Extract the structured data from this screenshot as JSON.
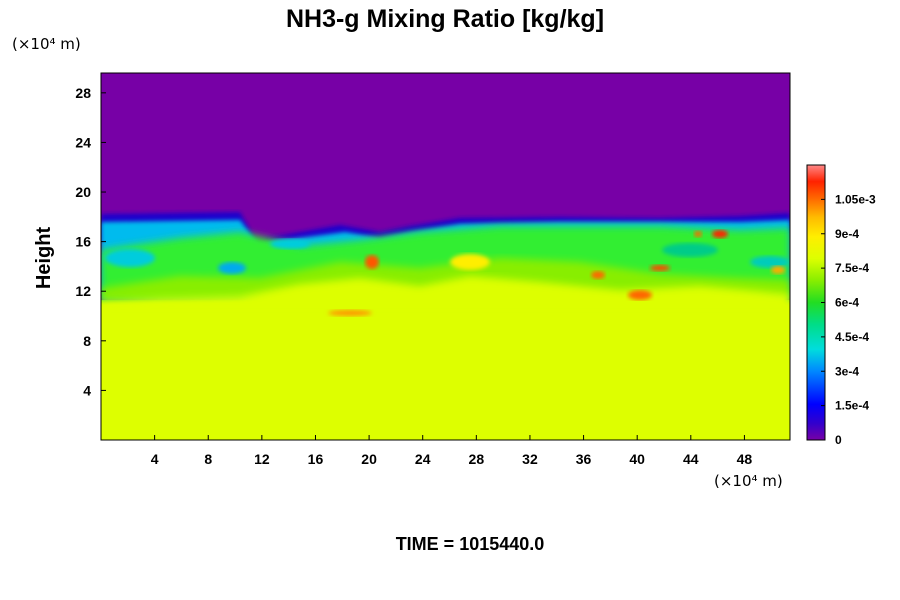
{
  "chart_data": {
    "type": "heatmap",
    "title": "NH3-g Mixing Ratio [kg/kg]",
    "ylabel": "Height",
    "x_unit": "(×10⁴ m)",
    "y_unit": "(×10⁴ m)",
    "x_ticks": [
      4,
      8,
      12,
      16,
      20,
      24,
      28,
      32,
      36,
      40,
      44,
      48
    ],
    "y_ticks": [
      4,
      8,
      12,
      16,
      20,
      24,
      28
    ],
    "xlim": [
      0,
      51.4
    ],
    "ylim": [
      0,
      29.6
    ],
    "colorbar": {
      "labels": [
        "0",
        "1.5e-4",
        "3e-4",
        "4.5e-4",
        "6e-4",
        "7.5e-4",
        "9e-4",
        "1.05e-3"
      ],
      "values": [
        0,
        0.00015,
        0.0003,
        0.00045,
        0.0006,
        0.00075,
        0.0009,
        0.00105
      ],
      "range": [
        0,
        0.0012
      ]
    },
    "footer": "TIME = 1015440.0",
    "colors": {
      "upper_region": "#7700a6",
      "lower_region": "#ddff00",
      "mixed_band": "#44ee22"
    }
  }
}
